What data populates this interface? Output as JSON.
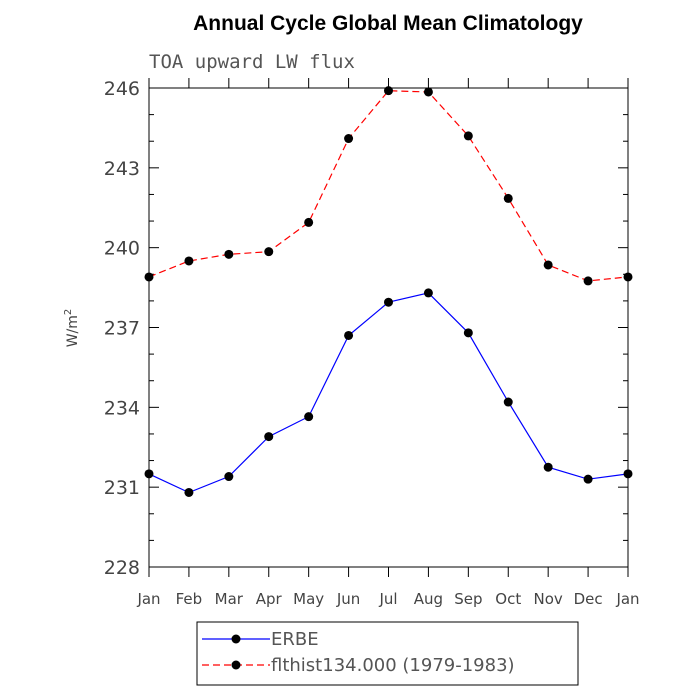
{
  "chart_data": {
    "type": "line",
    "title": "Annual Cycle Global Mean Climatology",
    "subtitle": "TOA upward LW flux",
    "ylabel_base": "W/m",
    "ylabel_sup": "2",
    "ylim": [
      228,
      246
    ],
    "yticks": [
      "228",
      "231",
      "234",
      "237",
      "240",
      "243",
      "246"
    ],
    "yticks_values": [
      228,
      231,
      234,
      237,
      240,
      243,
      246
    ],
    "yminor_step": 1,
    "categories": [
      "Jan",
      "Feb",
      "Mar",
      "Apr",
      "May",
      "Jun",
      "Jul",
      "Aug",
      "Sep",
      "Oct",
      "Nov",
      "Dec",
      "Jan"
    ],
    "series": [
      {
        "name": "ERBE",
        "color": "#0000ff",
        "dash": "solid",
        "values": [
          231.5,
          230.8,
          231.4,
          232.9,
          233.65,
          236.7,
          237.95,
          238.3,
          236.8,
          234.2,
          231.75,
          231.3,
          231.5
        ]
      },
      {
        "name": "flthist134.000 (1979-1983)",
        "color": "#ff0000",
        "dash": "dashed",
        "values": [
          238.9,
          239.5,
          239.75,
          239.85,
          240.95,
          244.1,
          245.9,
          245.85,
          244.2,
          241.85,
          239.35,
          238.75,
          238.9
        ]
      }
    ],
    "marker": "filled-circle",
    "marker_color": "#000000",
    "legend_position": "bottom"
  }
}
